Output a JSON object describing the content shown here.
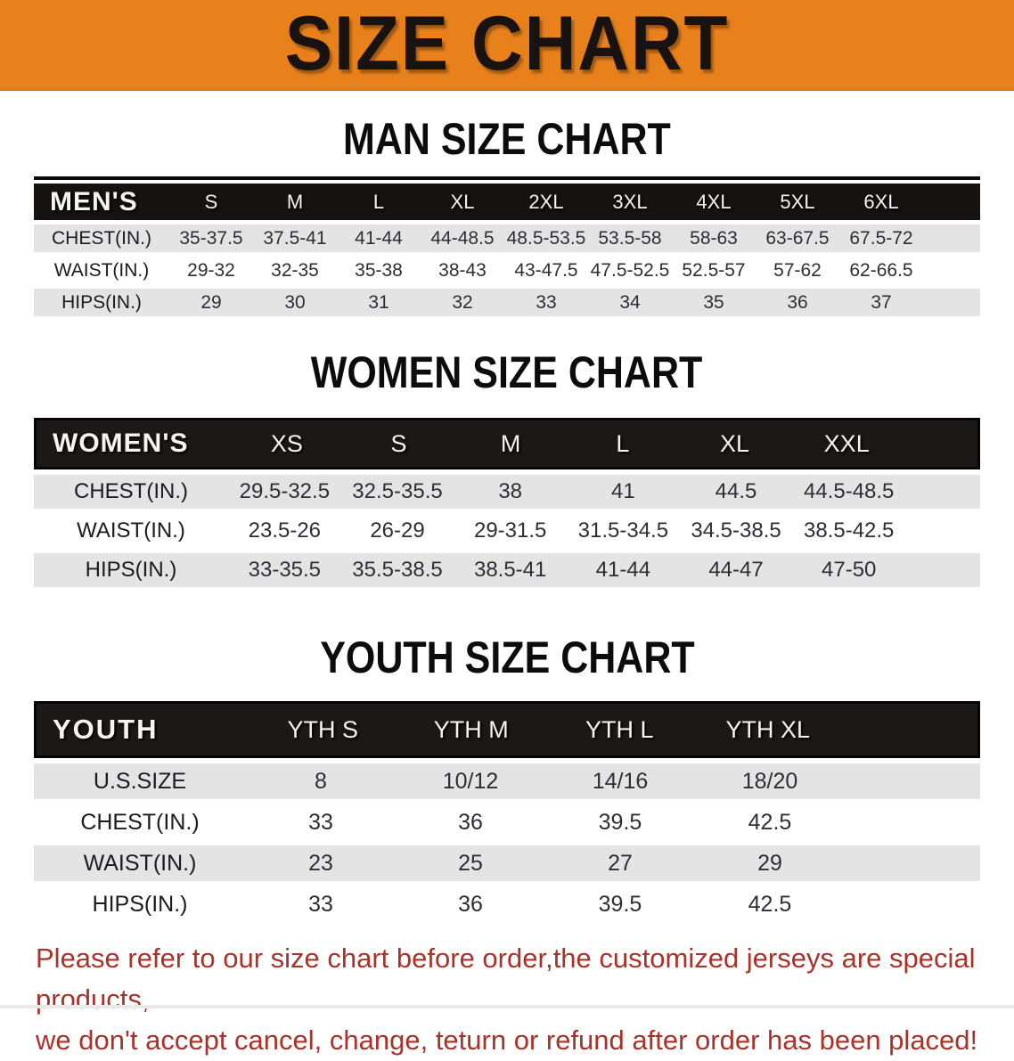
{
  "banner": {
    "title": "SIZE CHART"
  },
  "colors": {
    "banner_orange": "#E8811C",
    "header_black": "#151211",
    "row_gray": "#E4E4E5",
    "row_white": "#FFFFFF",
    "footer_red": "#A7332B"
  },
  "tables": [
    {
      "id": "men",
      "section_title": "MAN SIZE CHART",
      "corner_label": "MEN'S",
      "columns": [
        "S",
        "M",
        "L",
        "XL",
        "2XL",
        "3XL",
        "4XL",
        "5XL",
        "6XL"
      ],
      "rows": [
        {
          "label": "CHEST(IN.)",
          "values": [
            "35-37.5",
            "37.5-41",
            "41-44",
            "44-48.5",
            "48.5-53.5",
            "53.5-58",
            "58-63",
            "63-67.5",
            "67.5-72"
          ]
        },
        {
          "label": "WAIST(IN.)",
          "values": [
            "29-32",
            "32-35",
            "35-38",
            "38-43",
            "43-47.5",
            "47.5-52.5",
            "52.5-57",
            "57-62",
            "62-66.5"
          ]
        },
        {
          "label": "HIPS(IN.)",
          "values": [
            "29",
            "30",
            "31",
            "32",
            "33",
            "34",
            "35",
            "36",
            "37"
          ]
        }
      ]
    },
    {
      "id": "women",
      "section_title": "WOMEN SIZE CHART",
      "corner_label": "WOMEN'S",
      "columns": [
        "XS",
        "S",
        "M",
        "L",
        "XL",
        "XXL"
      ],
      "rows": [
        {
          "label": "CHEST(IN.)",
          "values": [
            "29.5-32.5",
            "32.5-35.5",
            "38",
            "41",
            "44.5",
            "44.5-48.5"
          ]
        },
        {
          "label": "WAIST(IN.)",
          "values": [
            "23.5-26",
            "26-29",
            "29-31.5",
            "31.5-34.5",
            "34.5-38.5",
            "38.5-42.5"
          ]
        },
        {
          "label": "HIPS(IN.)",
          "values": [
            "33-35.5",
            "35.5-38.5",
            "38.5-41",
            "41-44",
            "44-47",
            "47-50"
          ]
        }
      ]
    },
    {
      "id": "youth",
      "section_title": "YOUTH SIZE CHART",
      "corner_label": "YOUTH",
      "columns": [
        "YTH S",
        "YTH M",
        "YTH L",
        "YTH XL"
      ],
      "rows": [
        {
          "label": "U.S.SIZE",
          "values": [
            "8",
            "10/12",
            "14/16",
            "18/20"
          ]
        },
        {
          "label": "CHEST(IN.)",
          "values": [
            "33",
            "36",
            "39.5",
            "42.5"
          ]
        },
        {
          "label": "WAIST(IN.)",
          "values": [
            "23",
            "25",
            "27",
            "29"
          ]
        },
        {
          "label": "HIPS(IN.)",
          "values": [
            "33",
            "36",
            "39.5",
            "42.5"
          ]
        }
      ]
    }
  ],
  "footer": {
    "line1": "Please refer to our size chart before order,the customized jerseys are special products,",
    "line2": "we don't accept cancel, change, teturn or refund after order has been placed!"
  }
}
